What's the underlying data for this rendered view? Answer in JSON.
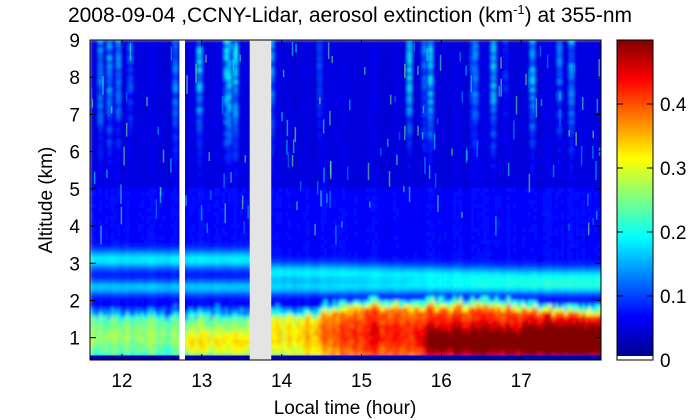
{
  "chart_data": {
    "type": "heatmap",
    "title_prefix": "2008-09-04 ,CCNY-Lidar, aerosol extinction (km",
    "title_sup": "-1",
    "title_suffix": ") at 355-nm",
    "xlabel": "Local time (hour)",
    "ylabel": "Altitude (km)",
    "xlim": [
      11.6,
      18.0
    ],
    "ylim": [
      0.4,
      9.0
    ],
    "x_ticks": [
      12,
      13,
      14,
      15,
      16,
      17
    ],
    "y_ticks": [
      1,
      2,
      3,
      4,
      5,
      6,
      7,
      8,
      9
    ],
    "colorbar": {
      "range": [
        0,
        0.5
      ],
      "ticks": [
        0,
        0.1,
        0.2,
        0.3,
        0.4
      ],
      "colormap": "jet"
    },
    "data_gaps": [
      [
        12.72,
        12.79
      ],
      [
        13.6,
        13.87
      ]
    ],
    "layers": {
      "boundary_layer_top_km": 2.0,
      "residual_layer_km": [
        2.6,
        3.3
      ],
      "peak_extinction_region": {
        "time": [
          15.7,
          17.9
        ],
        "altitude_km": [
          0.6,
          1.6
        ],
        "value": 0.5
      }
    }
  }
}
